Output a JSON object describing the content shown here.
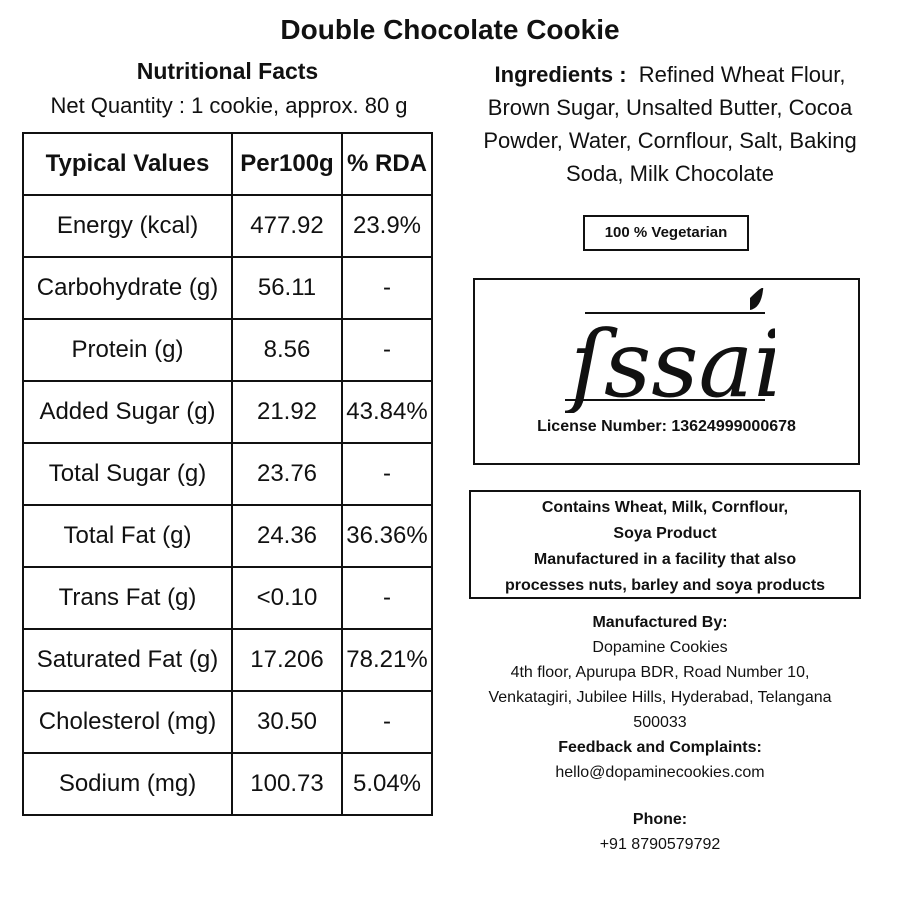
{
  "title": "Double Chocolate Cookie",
  "nutrition": {
    "heading": "Nutritional Facts",
    "net_quantity": "Net Quantity : 1 cookie, approx. 80 g",
    "headers": [
      "Typical Values",
      "Per100g",
      "% RDA"
    ],
    "rows": [
      [
        "Energy (kcal)",
        "477.92",
        "23.9%"
      ],
      [
        "Carbohydrate (g)",
        "56.11",
        "-"
      ],
      [
        "Protein (g)",
        "8.56",
        "-"
      ],
      [
        "Added Sugar (g)",
        "21.92",
        "43.84%"
      ],
      [
        "Total Sugar (g)",
        "23.76",
        "-"
      ],
      [
        "Total Fat (g)",
        "24.36",
        "36.36%"
      ],
      [
        "Trans Fat (g)",
        "<0.10",
        "-"
      ],
      [
        "Saturated Fat (g)",
        "17.206",
        "78.21%"
      ],
      [
        "Cholesterol (mg)",
        "30.50",
        "-"
      ],
      [
        "Sodium (mg)",
        "100.73",
        "5.04%"
      ]
    ]
  },
  "ingredients": {
    "label": "Ingredients :",
    "text": "Refined Wheat Flour, Brown Sugar, Unsalted Butter, Cocoa Powder, Water, Cornflour, Salt, Baking Soda, Milk Chocolate"
  },
  "vegetarian": "100 % Vegetarian",
  "fssai": {
    "logo_text": "fssai",
    "license": "License Number: 13624999000678"
  },
  "allergens": {
    "line1": "Contains Wheat, Milk, Cornflour,",
    "line2": "Soya Product",
    "line3": "Manufactured in a facility that also",
    "line4": "processes nuts, barley and soya products"
  },
  "manufacturer": {
    "label": "Manufactured By:",
    "name": "Dopamine Cookies",
    "addr1": "4th floor, Apurupa BDR, Road Number 10,",
    "addr2": "Venkatagiri, Jubilee Hills, Hyderabad, Telangana",
    "addr3": "500033",
    "feedback_label": "Feedback and Complaints:",
    "email": "hello@dopaminecookies.com",
    "phone_label": "Phone:",
    "phone": "+91 8790579792"
  }
}
